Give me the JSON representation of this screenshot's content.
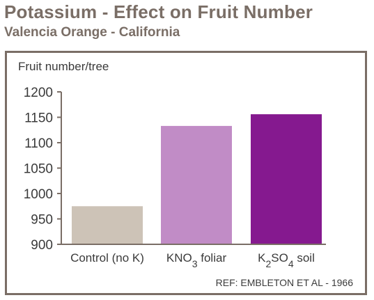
{
  "header": {
    "title": "Potassium - Effect on Fruit Number",
    "subtitle": "Valencia Orange - California"
  },
  "footer": {
    "reference": "REF: EMBLETON ET AL - 1966"
  },
  "chart_data": {
    "type": "bar",
    "ylabel": "Fruit number/tree",
    "xlabel": "",
    "ylim": [
      900,
      1200
    ],
    "yticks": [
      900,
      950,
      1000,
      1050,
      1100,
      1150,
      1200
    ],
    "categories": [
      "Control (no K)",
      "KNO3 foliar",
      "K2SO4 soil"
    ],
    "category_parts": [
      [
        {
          "t": "Control (no K)",
          "sub": false
        }
      ],
      [
        {
          "t": "KNO",
          "sub": false
        },
        {
          "t": "3",
          "sub": true
        },
        {
          "t": " foliar",
          "sub": false
        }
      ],
      [
        {
          "t": "K",
          "sub": false
        },
        {
          "t": "2",
          "sub": true
        },
        {
          "t": "SO",
          "sub": false
        },
        {
          "t": "4",
          "sub": true
        },
        {
          "t": " soil",
          "sub": false
        }
      ]
    ],
    "values": [
      975,
      1133,
      1156
    ],
    "colors": [
      "#cdc3b7",
      "#c18cc6",
      "#85198f"
    ],
    "grid": false,
    "legend": "none"
  }
}
